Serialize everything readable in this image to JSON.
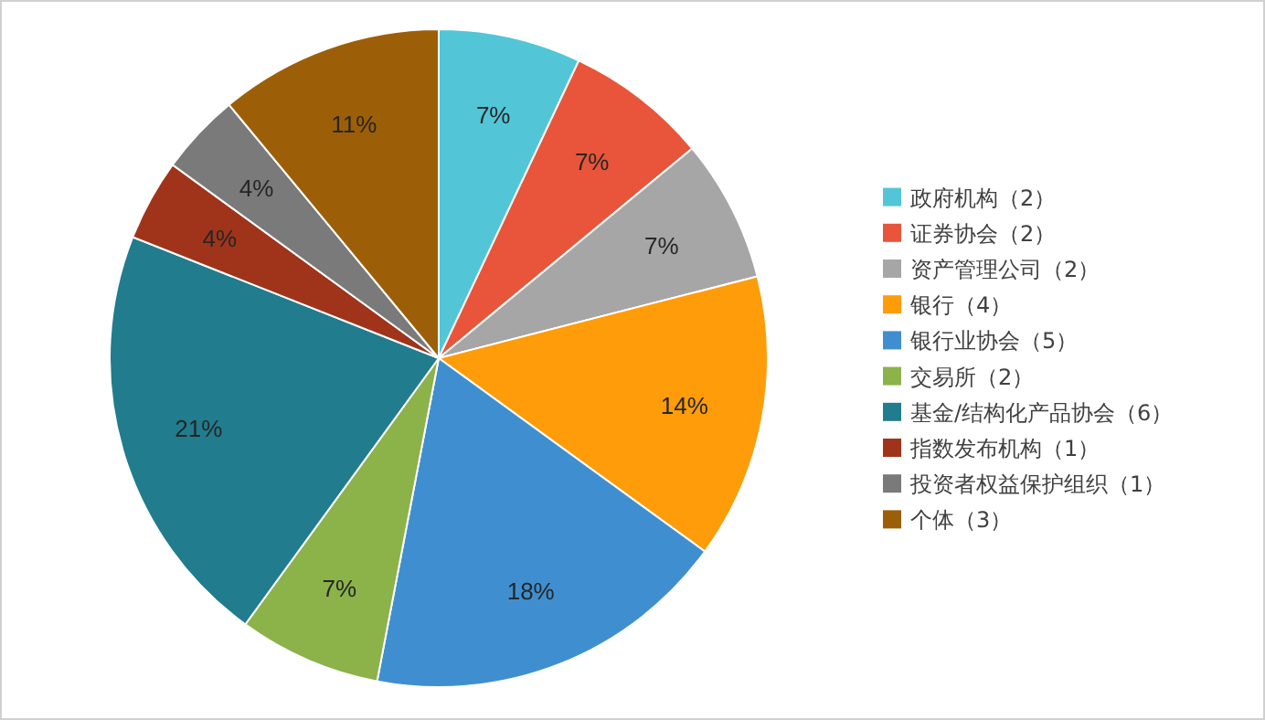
{
  "chart_data": {
    "type": "pie",
    "categories": [
      "政府机构（2）",
      "证券协会（2）",
      "资产管理公司（2）",
      "银行（4）",
      "银行业协会（5）",
      "交易所（2）",
      "基金/结构化产品协会（6）",
      "指数发布机构（1）",
      "投资者权益保护组织（1）",
      "个体（3）"
    ],
    "values": [
      7,
      7,
      7,
      14,
      18,
      7,
      21,
      4,
      4,
      11
    ],
    "value_labels": [
      "7%",
      "7%",
      "7%",
      "14%",
      "18%",
      "7%",
      "21%",
      "4%",
      "4%",
      "11%"
    ],
    "colors": [
      "#52c6d6",
      "#e8553a",
      "#a6a6a6",
      "#ff9c0a",
      "#3f8fd0",
      "#8cb24a",
      "#217c8e",
      "#a0341a",
      "#7a7a7a",
      "#9c5f08"
    ],
    "legend": "right"
  }
}
